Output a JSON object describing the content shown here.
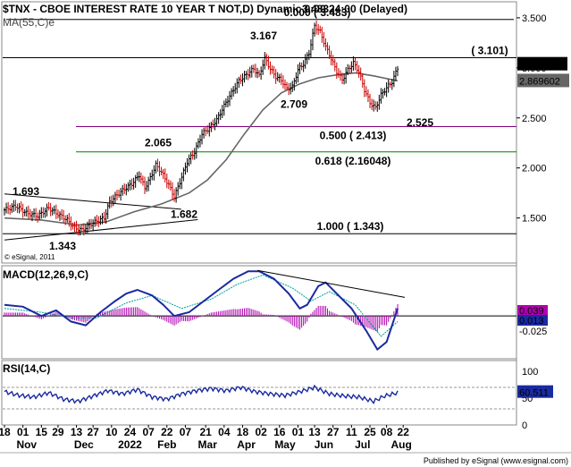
{
  "chart_data": [
    {
      "type": "ohlc",
      "title": "$TNX - CBOE INTEREST RATE 10 YEAR T NOT,D) Dynamic 0:00 24:00 (Delayed)",
      "ma_label": "MA(55,C)e",
      "watermark": "© eSignal, 2011",
      "ylim": [
        1.05,
        3.66
      ],
      "y_ticks": [
        "3.500",
        "3.000",
        "2.500",
        "2.000",
        "1.500"
      ],
      "y_tick_values": [
        3.5,
        3.0,
        2.5,
        2.0,
        1.5
      ],
      "last_price": "3.037",
      "ma_value": "2.869602",
      "fib_levels": [
        {
          "value": 3.483,
          "label": "0.000 ( 3.483)",
          "color": "#000000"
        },
        {
          "value": 3.101,
          "label": "( 3.101)",
          "color": "#000000"
        },
        {
          "value": 2.413,
          "label": "0.500 ( 2.413)",
          "color": "#800080"
        },
        {
          "value": 2.16048,
          "label": "0.618 (2.16048)",
          "color": "#008000"
        },
        {
          "value": 1.343,
          "label": "1.000 ( 1.343)",
          "color": "#000000"
        }
      ],
      "annotations": [
        {
          "text": "3.483",
          "value": 3.483
        },
        {
          "text": "3.167",
          "value": 3.167
        },
        {
          "text": "2.709",
          "value": 2.709
        },
        {
          "text": "2.525",
          "value": 2.525
        },
        {
          "text": "2.065",
          "value": 2.065
        },
        {
          "text": "1.693",
          "value": 1.693
        },
        {
          "text": "1.682",
          "value": 1.682
        },
        {
          "text": "1.343",
          "value": 1.343
        }
      ],
      "key_points": [
        {
          "day": 0,
          "close": 1.58
        },
        {
          "day": 6,
          "close": 1.62
        },
        {
          "day": 12,
          "close": 1.55
        },
        {
          "day": 18,
          "close": 1.52
        },
        {
          "day": 24,
          "close": 1.6
        },
        {
          "day": 28,
          "close": 1.55
        },
        {
          "day": 34,
          "close": 1.48
        },
        {
          "day": 38,
          "close": 1.4
        },
        {
          "day": 42,
          "close": 1.38
        },
        {
          "day": 46,
          "close": 1.43
        },
        {
          "day": 50,
          "close": 1.47
        },
        {
          "day": 54,
          "close": 1.5
        },
        {
          "day": 57,
          "close": 1.66
        },
        {
          "day": 61,
          "close": 1.73
        },
        {
          "day": 65,
          "close": 1.79
        },
        {
          "day": 69,
          "close": 1.84
        },
        {
          "day": 73,
          "close": 1.93
        },
        {
          "day": 76,
          "close": 1.8
        },
        {
          "day": 79,
          "close": 1.9
        },
        {
          "day": 82,
          "close": 2.03
        },
        {
          "day": 85,
          "close": 1.96
        },
        {
          "day": 89,
          "close": 1.83
        },
        {
          "day": 92,
          "close": 1.71
        },
        {
          "day": 95,
          "close": 1.86
        },
        {
          "day": 99,
          "close": 2.06
        },
        {
          "day": 103,
          "close": 2.16
        },
        {
          "day": 107,
          "close": 2.34
        },
        {
          "day": 111,
          "close": 2.4
        },
        {
          "day": 115,
          "close": 2.48
        },
        {
          "day": 119,
          "close": 2.62
        },
        {
          "day": 123,
          "close": 2.75
        },
        {
          "day": 127,
          "close": 2.87
        },
        {
          "day": 131,
          "close": 2.93
        },
        {
          "day": 135,
          "close": 2.99
        },
        {
          "day": 138,
          "close": 2.92
        },
        {
          "day": 141,
          "close": 3.1
        },
        {
          "day": 144,
          "close": 2.99
        },
        {
          "day": 147,
          "close": 2.91
        },
        {
          "day": 150,
          "close": 2.88
        },
        {
          "day": 153,
          "close": 2.79
        },
        {
          "day": 156,
          "close": 2.81
        },
        {
          "day": 159,
          "close": 2.98
        },
        {
          "day": 162,
          "close": 3.04
        },
        {
          "day": 165,
          "close": 3.15
        },
        {
          "day": 168,
          "close": 3.42
        },
        {
          "day": 171,
          "close": 3.36
        },
        {
          "day": 174,
          "close": 3.21
        },
        {
          "day": 177,
          "close": 3.09
        },
        {
          "day": 180,
          "close": 2.96
        },
        {
          "day": 183,
          "close": 2.88
        },
        {
          "day": 186,
          "close": 2.98
        },
        {
          "day": 189,
          "close": 3.05
        },
        {
          "day": 192,
          "close": 2.96
        },
        {
          "day": 195,
          "close": 2.78
        },
        {
          "day": 198,
          "close": 2.65
        },
        {
          "day": 201,
          "close": 2.6
        },
        {
          "day": 204,
          "close": 2.73
        },
        {
          "day": 207,
          "close": 2.8
        },
        {
          "day": 210,
          "close": 2.86
        },
        {
          "day": 213,
          "close": 3.0
        }
      ],
      "ma_points": [
        {
          "day": 0,
          "ma": 1.5
        },
        {
          "day": 20,
          "ma": 1.48
        },
        {
          "day": 40,
          "ma": 1.43
        },
        {
          "day": 55,
          "ma": 1.46
        },
        {
          "day": 70,
          "ma": 1.56
        },
        {
          "day": 85,
          "ma": 1.64
        },
        {
          "day": 100,
          "ma": 1.75
        },
        {
          "day": 110,
          "ma": 1.88
        },
        {
          "day": 120,
          "ma": 2.08
        },
        {
          "day": 130,
          "ma": 2.34
        },
        {
          "day": 140,
          "ma": 2.58
        },
        {
          "day": 150,
          "ma": 2.75
        },
        {
          "day": 160,
          "ma": 2.84
        },
        {
          "day": 170,
          "ma": 2.9
        },
        {
          "day": 180,
          "ma": 2.93
        },
        {
          "day": 190,
          "ma": 2.95
        },
        {
          "day": 200,
          "ma": 2.92
        },
        {
          "day": 213,
          "ma": 2.87
        }
      ],
      "trendlines": [
        {
          "from": {
            "day": 0,
            "value": 1.74
          },
          "to": {
            "day": 57,
            "value": 1.64
          }
        },
        {
          "from": {
            "day": 0,
            "value": 1.28
          },
          "to": {
            "day": 66,
            "value": 1.42
          }
        }
      ]
    },
    {
      "type": "line",
      "title": "MACD(12,26,9,C)",
      "ylim": [
        -0.23,
        0.27
      ],
      "zero": 0,
      "values": {
        "macd": "0.039",
        "signal": "0.013",
        "histogram": "-0.025"
      },
      "macd_points": [
        {
          "day": 0,
          "v": 0.06
        },
        {
          "day": 10,
          "v": 0.05
        },
        {
          "day": 20,
          "v": 0.0
        },
        {
          "day": 28,
          "v": 0.03
        },
        {
          "day": 36,
          "v": -0.03
        },
        {
          "day": 44,
          "v": -0.05
        },
        {
          "day": 52,
          "v": 0.02
        },
        {
          "day": 60,
          "v": 0.08
        },
        {
          "day": 66,
          "v": 0.12
        },
        {
          "day": 72,
          "v": 0.14
        },
        {
          "day": 80,
          "v": 0.11
        },
        {
          "day": 86,
          "v": 0.06
        },
        {
          "day": 92,
          "v": 0.0
        },
        {
          "day": 100,
          "v": 0.02
        },
        {
          "day": 108,
          "v": 0.08
        },
        {
          "day": 116,
          "v": 0.14
        },
        {
          "day": 124,
          "v": 0.2
        },
        {
          "day": 132,
          "v": 0.24
        },
        {
          "day": 138,
          "v": 0.24
        },
        {
          "day": 146,
          "v": 0.2
        },
        {
          "day": 154,
          "v": 0.12
        },
        {
          "day": 160,
          "v": 0.04
        },
        {
          "day": 164,
          "v": 0.06
        },
        {
          "day": 170,
          "v": 0.16
        },
        {
          "day": 174,
          "v": 0.18
        },
        {
          "day": 180,
          "v": 0.12
        },
        {
          "day": 188,
          "v": 0.04
        },
        {
          "day": 196,
          "v": -0.08
        },
        {
          "day": 202,
          "v": -0.18
        },
        {
          "day": 207,
          "v": -0.14
        },
        {
          "day": 213,
          "v": 0.04
        }
      ],
      "signal_points": [
        {
          "day": 0,
          "v": 0.04
        },
        {
          "day": 20,
          "v": 0.02
        },
        {
          "day": 36,
          "v": -0.01
        },
        {
          "day": 50,
          "v": -0.01
        },
        {
          "day": 66,
          "v": 0.07
        },
        {
          "day": 80,
          "v": 0.11
        },
        {
          "day": 96,
          "v": 0.04
        },
        {
          "day": 112,
          "v": 0.09
        },
        {
          "day": 126,
          "v": 0.17
        },
        {
          "day": 140,
          "v": 0.22
        },
        {
          "day": 156,
          "v": 0.15
        },
        {
          "day": 166,
          "v": 0.08
        },
        {
          "day": 176,
          "v": 0.13
        },
        {
          "day": 190,
          "v": 0.06
        },
        {
          "day": 204,
          "v": -0.11
        },
        {
          "day": 213,
          "v": -0.03
        }
      ],
      "trendline": {
        "from": {
          "day": 137,
          "value": 0.245
        },
        "to": {
          "day": 213,
          "value": 0.1
        }
      }
    },
    {
      "type": "line",
      "title": "RSI(14,C)",
      "ylim": [
        0,
        120
      ],
      "y_ticks": [
        "100",
        "50",
        "0"
      ],
      "y_tick_values": [
        100,
        50,
        0
      ],
      "guides": [
        70,
        30
      ],
      "value": "60.511",
      "rsi_points": [
        {
          "day": 0,
          "v": 62
        },
        {
          "day": 8,
          "v": 55
        },
        {
          "day": 16,
          "v": 52
        },
        {
          "day": 24,
          "v": 60
        },
        {
          "day": 32,
          "v": 48
        },
        {
          "day": 40,
          "v": 44
        },
        {
          "day": 48,
          "v": 54
        },
        {
          "day": 56,
          "v": 64
        },
        {
          "day": 64,
          "v": 58
        },
        {
          "day": 72,
          "v": 66
        },
        {
          "day": 80,
          "v": 52
        },
        {
          "day": 88,
          "v": 48
        },
        {
          "day": 96,
          "v": 58
        },
        {
          "day": 104,
          "v": 64
        },
        {
          "day": 112,
          "v": 68
        },
        {
          "day": 120,
          "v": 64
        },
        {
          "day": 128,
          "v": 70
        },
        {
          "day": 136,
          "v": 62
        },
        {
          "day": 144,
          "v": 58
        },
        {
          "day": 152,
          "v": 55
        },
        {
          "day": 160,
          "v": 62
        },
        {
          "day": 168,
          "v": 70
        },
        {
          "day": 176,
          "v": 58
        },
        {
          "day": 184,
          "v": 54
        },
        {
          "day": 192,
          "v": 52
        },
        {
          "day": 200,
          "v": 44
        },
        {
          "day": 206,
          "v": 54
        },
        {
          "day": 213,
          "v": 60
        }
      ],
      "x_ticks": [
        {
          "day": 0,
          "label": "18"
        },
        {
          "day": 10,
          "label": "01"
        },
        {
          "day": 20,
          "label": "15"
        },
        {
          "day": 29,
          "label": "29"
        },
        {
          "day": 39,
          "label": "13"
        },
        {
          "day": 48,
          "label": "27"
        },
        {
          "day": 58,
          "label": "10"
        },
        {
          "day": 68,
          "label": "24"
        },
        {
          "day": 78,
          "label": "07"
        },
        {
          "day": 88,
          "label": "22"
        },
        {
          "day": 98,
          "label": "07"
        },
        {
          "day": 109,
          "label": "21"
        },
        {
          "day": 119,
          "label": "04"
        },
        {
          "day": 129,
          "label": "18"
        },
        {
          "day": 139,
          "label": "02"
        },
        {
          "day": 149,
          "label": "16"
        },
        {
          "day": 159,
          "label": "01"
        },
        {
          "day": 168,
          "label": "13"
        },
        {
          "day": 178,
          "label": "27"
        },
        {
          "day": 188,
          "label": "11"
        },
        {
          "day": 198,
          "label": "25"
        },
        {
          "day": 207,
          "label": "08"
        },
        {
          "day": 216,
          "label": "22"
        }
      ],
      "month_labels": [
        {
          "day": 12,
          "label": "Nov"
        },
        {
          "day": 43,
          "label": "Dec"
        },
        {
          "day": 68,
          "label": "2022"
        },
        {
          "day": 88,
          "label": "Feb"
        },
        {
          "day": 110,
          "label": "Mar"
        },
        {
          "day": 131,
          "label": "Apr"
        },
        {
          "day": 152,
          "label": "May"
        },
        {
          "day": 173,
          "label": "Jun"
        },
        {
          "day": 194,
          "label": "Jul"
        },
        {
          "day": 215,
          "label": "Aug"
        }
      ]
    }
  ],
  "footer": "Published by eSignal (www.esignal.com)"
}
